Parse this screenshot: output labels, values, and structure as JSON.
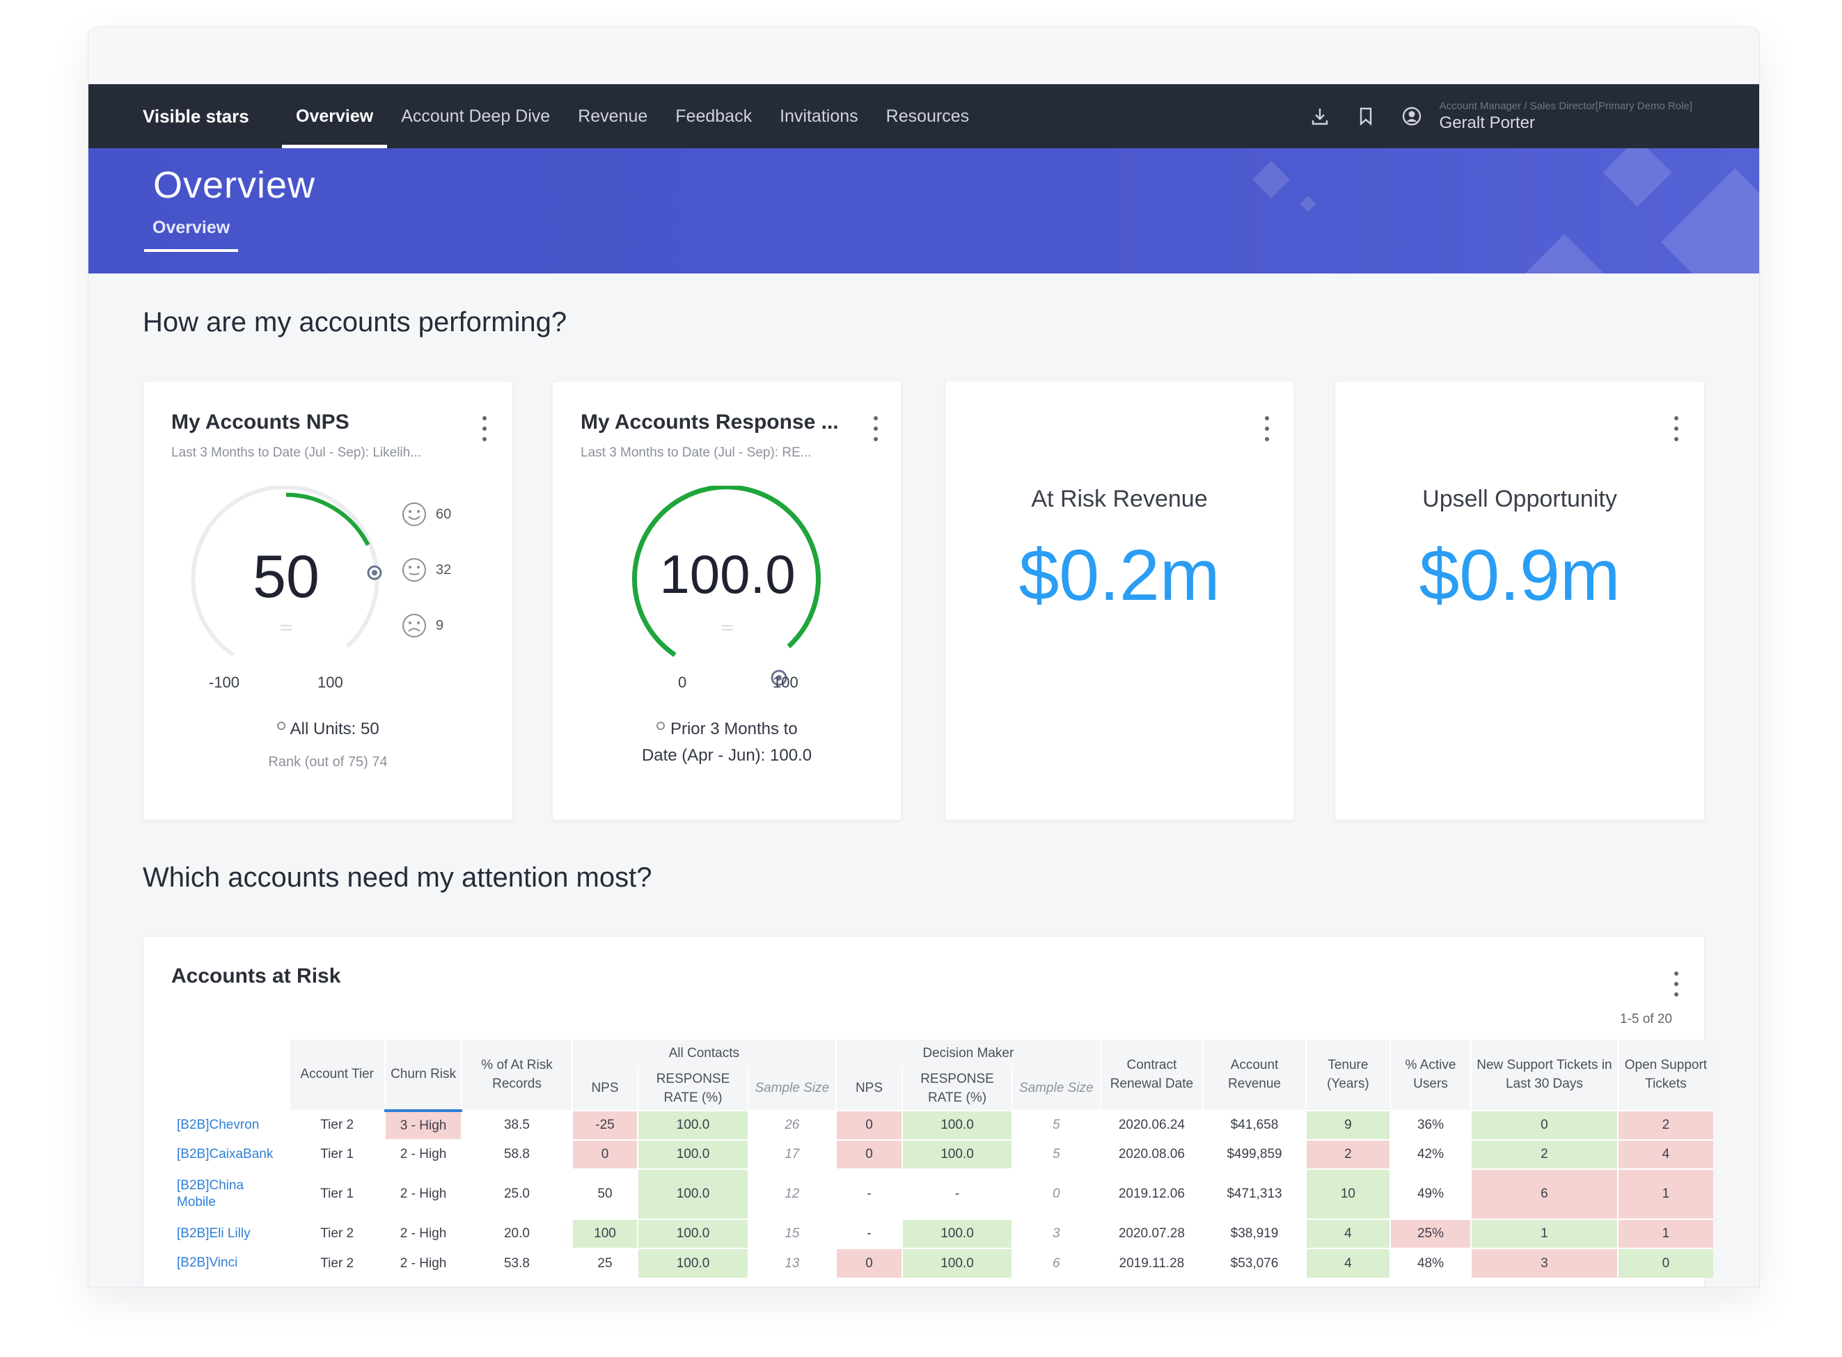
{
  "nav": {
    "brand": "Visible stars",
    "tabs": [
      "Overview",
      "Account Deep Dive",
      "Revenue",
      "Feedback",
      "Invitations",
      "Resources"
    ],
    "user_role": "Account Manager / Sales Director[Primary Demo Role]",
    "user_name": "Geralt Porter"
  },
  "banner": {
    "title": "Overview",
    "tab": "Overview"
  },
  "sections": {
    "performance": "How are my accounts performing?",
    "attention": "Which accounts need my attention most?"
  },
  "nps_card": {
    "title": "My Accounts NPS",
    "subtitle": "Last 3 Months to Date (Jul - Sep): Likelih...",
    "value": "50",
    "min": "-100",
    "max": "100",
    "promoters": "60",
    "passives": "32",
    "detractors": "9",
    "footer": "All Units: 50",
    "rank": "Rank (out of 75) 74"
  },
  "response_card": {
    "title": "My Accounts Response ...",
    "subtitle": "Last 3 Months to Date (Jul - Sep): RE...",
    "value": "100.0",
    "min": "0",
    "max": "100",
    "footer_line1": "Prior 3 Months to",
    "footer_line2": "Date (Apr - Jun): 100.0"
  },
  "risk_card": {
    "label": "At Risk Revenue",
    "value": "$0.2m"
  },
  "upsell_card": {
    "label": "Upsell Opportunity",
    "value": "$0.9m"
  },
  "accounts_table": {
    "title": "Accounts at Risk",
    "page_count": "1-5 of 20",
    "group_all_contacts": "All Contacts",
    "group_decision_maker": "Decision Maker",
    "headers": {
      "tier": "Account Tier",
      "churn": "Churn Risk",
      "pct_risk": "% of At Risk Records",
      "nps": "NPS",
      "response": "RESPONSE RATE (%)",
      "sample": "Sample Size",
      "renewal": "Contract Renewal Date",
      "revenue": "Account Revenue",
      "tenure": "Tenure (Years)",
      "active": "% Active Users",
      "new_tickets": "New Support Tickets in Last 30 Days",
      "open_tickets": "Open Support Tickets"
    },
    "rows": [
      {
        "account": "[B2B]Chevron",
        "tier": "Tier 2",
        "churn": "3 - High",
        "pct_risk": "38.5",
        "nps": "-25",
        "response": "100.0",
        "sample": "26",
        "dm_nps": "0",
        "dm_response": "100.0",
        "dm_sample": "5",
        "renewal": "2020.06.24",
        "revenue": "$41,658",
        "tenure": "9",
        "active": "36%",
        "new_tickets": "0",
        "open_tickets": "2"
      },
      {
        "account": "[B2B]CaixaBank",
        "tier": "Tier 1",
        "churn": "2 - High",
        "pct_risk": "58.8",
        "nps": "0",
        "response": "100.0",
        "sample": "17",
        "dm_nps": "0",
        "dm_response": "100.0",
        "dm_sample": "5",
        "renewal": "2020.08.06",
        "revenue": "$499,859",
        "tenure": "2",
        "active": "42%",
        "new_tickets": "2",
        "open_tickets": "4"
      },
      {
        "account": "[B2B]China Mobile",
        "tier": "Tier 1",
        "churn": "2 - High",
        "pct_risk": "25.0",
        "nps": "50",
        "response": "100.0",
        "sample": "12",
        "dm_nps": "-",
        "dm_response": "-",
        "dm_sample": "0",
        "renewal": "2019.12.06",
        "revenue": "$471,313",
        "tenure": "10",
        "active": "49%",
        "new_tickets": "6",
        "open_tickets": "1"
      },
      {
        "account": "[B2B]Eli Lilly",
        "tier": "Tier 2",
        "churn": "2 - High",
        "pct_risk": "20.0",
        "nps": "100",
        "response": "100.0",
        "sample": "15",
        "dm_nps": "-",
        "dm_response": "100.0",
        "dm_sample": "3",
        "renewal": "2020.07.28",
        "revenue": "$38,919",
        "tenure": "4",
        "active": "25%",
        "new_tickets": "1",
        "open_tickets": "1"
      },
      {
        "account": "[B2B]Vinci",
        "tier": "Tier 2",
        "churn": "2 - High",
        "pct_risk": "53.8",
        "nps": "25",
        "response": "100.0",
        "sample": "13",
        "dm_nps": "0",
        "dm_response": "100.0",
        "dm_sample": "6",
        "renewal": "2019.11.28",
        "revenue": "$53,076",
        "tenure": "4",
        "active": "48%",
        "new_tickets": "3",
        "open_tickets": "0"
      }
    ]
  },
  "colors": {
    "nav_bg": "#262b38",
    "banner_bg": "#4754c9",
    "gauge_green": "#1fa53b",
    "kpi_blue": "#2a9df4",
    "cell_green": "#d9efd0",
    "cell_red": "#f6d3d3"
  }
}
